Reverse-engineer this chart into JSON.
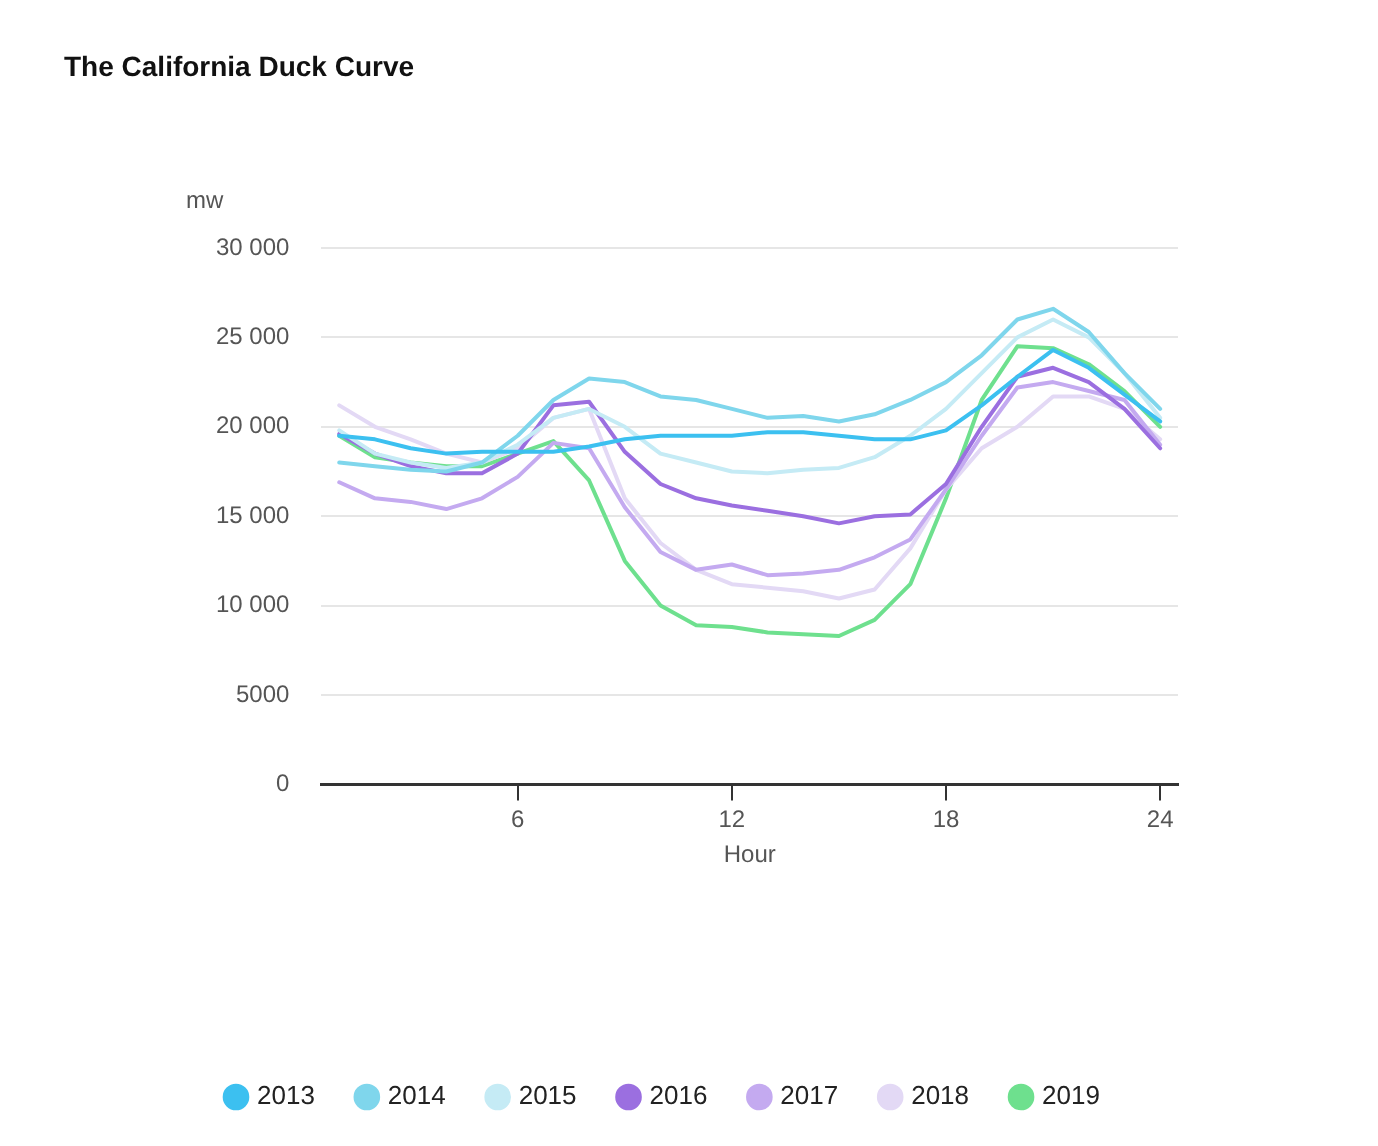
{
  "chart_data": {
    "type": "line",
    "title": "The California Duck Curve",
    "xlabel": "Hour",
    "ylabel": "mw",
    "x": [
      1,
      2,
      3,
      4,
      5,
      6,
      7,
      8,
      9,
      10,
      11,
      12,
      13,
      14,
      15,
      16,
      17,
      18,
      19,
      20,
      21,
      22,
      23,
      24
    ],
    "xlim": [
      0.5,
      24.5
    ],
    "xticks": [
      6,
      12,
      18,
      24
    ],
    "ylim": [
      0,
      30000
    ],
    "yticks": [
      0,
      {
        "value": 5000,
        "label": "5000"
      },
      {
        "value": 10000,
        "label": "10 000"
      },
      {
        "value": 15000,
        "label": "15 000"
      },
      {
        "value": 20000,
        "label": "20 000"
      },
      {
        "value": 25000,
        "label": "25 000"
      },
      {
        "value": 30000,
        "label": "30 000"
      }
    ],
    "grid": "y",
    "legend": "bottom left",
    "marker": "none",
    "line_style": "solid",
    "series": [
      {
        "name": "2013",
        "color": "#3cc0f0",
        "values": [
          19500,
          19300,
          18800,
          18500,
          18600,
          18600,
          18600,
          18900,
          19300,
          19500,
          19500,
          19500,
          19700,
          19700,
          19500,
          19300,
          19300,
          19800,
          21200,
          22800,
          24300,
          23300,
          21800,
          20300
        ]
      },
      {
        "name": "2014",
        "color": "#7fd6ec",
        "values": [
          18000,
          17800,
          17600,
          17500,
          18000,
          19500,
          21500,
          22700,
          22500,
          21700,
          21500,
          21000,
          20500,
          20600,
          20300,
          20700,
          21500,
          22500,
          24000,
          26000,
          26600,
          25300,
          23000,
          21000
        ]
      },
      {
        "name": "2015",
        "color": "#c5ebf5",
        "values": [
          19800,
          18500,
          18000,
          17700,
          18000,
          19000,
          20500,
          21000,
          20000,
          18500,
          18000,
          17500,
          17400,
          17600,
          17700,
          18300,
          19500,
          21000,
          23000,
          25000,
          26000,
          25000,
          23000,
          20500
        ]
      },
      {
        "name": "2016",
        "color": "#9b6fe0",
        "values": [
          19600,
          18500,
          17800,
          17400,
          17400,
          18500,
          21200,
          21400,
          18600,
          16800,
          16000,
          15600,
          15300,
          15000,
          14600,
          15000,
          15100,
          16800,
          20000,
          22800,
          23300,
          22500,
          21000,
          18800
        ]
      },
      {
        "name": "2017",
        "color": "#c4aaf0",
        "values": [
          16900,
          16000,
          15800,
          15400,
          16000,
          17200,
          19100,
          18800,
          15500,
          13000,
          12000,
          12300,
          11700,
          11800,
          12000,
          12700,
          13700,
          16500,
          19500,
          22200,
          22500,
          22000,
          21500,
          19000
        ]
      },
      {
        "name": "2018",
        "color": "#e3d9f5",
        "values": [
          21200,
          20000,
          19300,
          18500,
          18000,
          18800,
          20500,
          21000,
          16000,
          13500,
          12000,
          11200,
          11000,
          10800,
          10400,
          10900,
          13200,
          16500,
          18800,
          20000,
          21700,
          21700,
          21000,
          19300
        ]
      },
      {
        "name": "2019",
        "color": "#6ee08e",
        "values": [
          19500,
          18300,
          18000,
          17800,
          17800,
          18500,
          19200,
          17000,
          12500,
          10000,
          8900,
          8800,
          8500,
          8400,
          8300,
          9200,
          11200,
          16000,
          21500,
          24500,
          24400,
          23500,
          22000,
          20000
        ]
      }
    ]
  }
}
